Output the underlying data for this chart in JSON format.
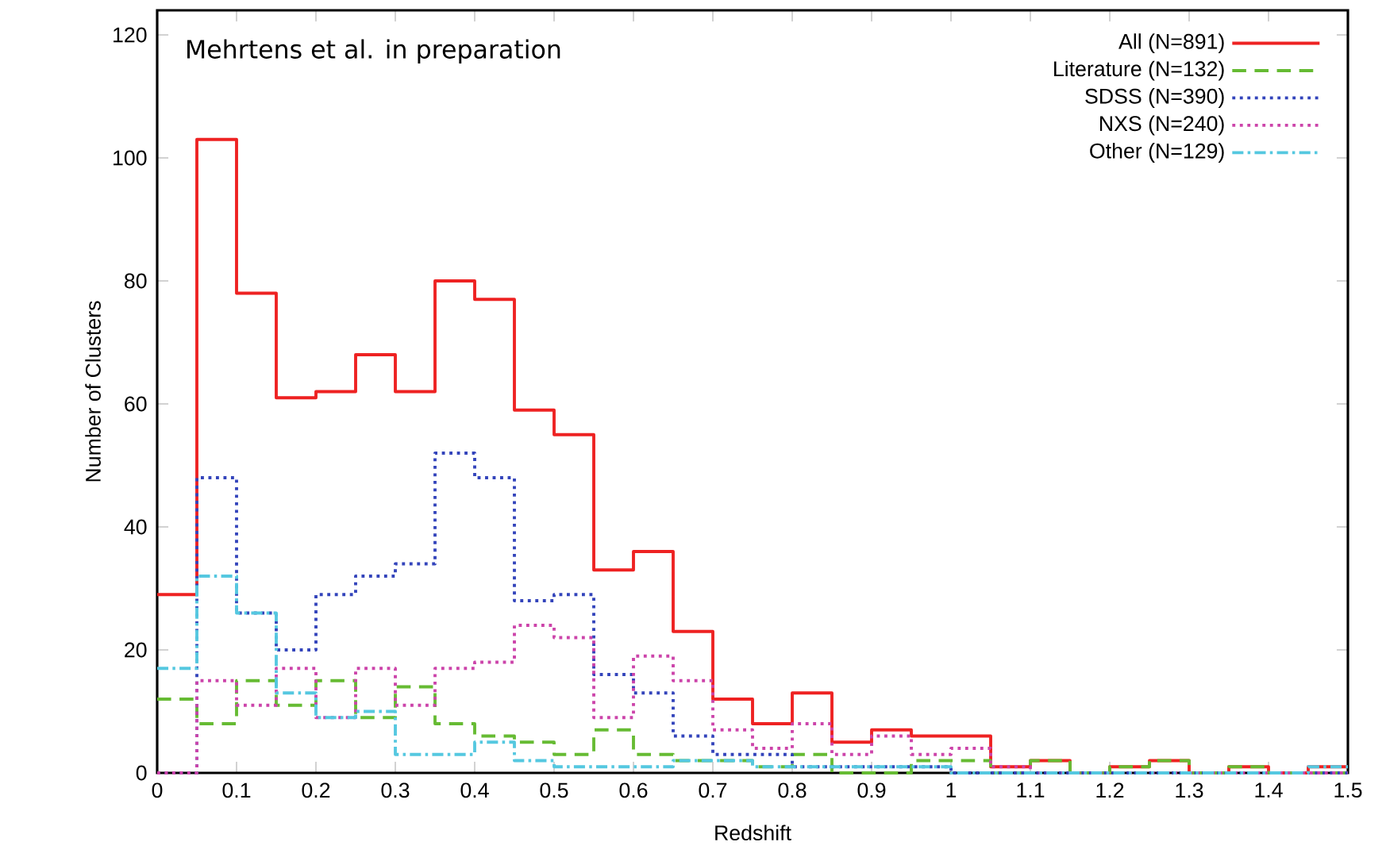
{
  "chart_data": {
    "type": "histogram",
    "xlabel": "Redshift",
    "ylabel": "Number of Clusters",
    "annotations": [
      "Mehrtens et al. in preparation"
    ],
    "bins": [
      0,
      0.05,
      0.1,
      0.15,
      0.2,
      0.25,
      0.3,
      0.35,
      0.4,
      0.45,
      0.5,
      0.55,
      0.6,
      0.65,
      0.7,
      0.75,
      0.8,
      0.85,
      0.9,
      0.95,
      1.0,
      1.05,
      1.1,
      1.15,
      1.2,
      1.25,
      1.3,
      1.35,
      1.4,
      1.45,
      1.5
    ],
    "series": [
      {
        "name": "All (N=891)",
        "color": "#ee2222",
        "line_style": "solid",
        "values": [
          29,
          103,
          78,
          61,
          62,
          68,
          62,
          80,
          77,
          59,
          55,
          33,
          36,
          23,
          12,
          8,
          13,
          5,
          7,
          6,
          6,
          1,
          2,
          0,
          1,
          2,
          0,
          1,
          0,
          1
        ]
      },
      {
        "name": "Literature (N=132)",
        "color": "#66bb33",
        "line_style": "dashed",
        "values": [
          12,
          8,
          15,
          11,
          15,
          9,
          14,
          8,
          6,
          5,
          3,
          7,
          3,
          2,
          2,
          1,
          3,
          0,
          0,
          2,
          2,
          0,
          2,
          0,
          1,
          2,
          0,
          1,
          0,
          0
        ]
      },
      {
        "name": "SDSS (N=390)",
        "color": "#3344bb",
        "line_style": "dotted",
        "values": [
          0,
          48,
          26,
          20,
          29,
          32,
          34,
          52,
          48,
          28,
          29,
          16,
          13,
          6,
          3,
          3,
          1,
          1,
          1,
          1,
          0,
          0,
          0,
          0,
          0,
          0,
          0,
          0,
          0,
          0
        ]
      },
      {
        "name": "NXS (N=240)",
        "color": "#cc44aa",
        "line_style": "dotted",
        "values": [
          0,
          15,
          11,
          17,
          9,
          17,
          11,
          17,
          18,
          24,
          22,
          9,
          19,
          15,
          7,
          4,
          8,
          3,
          6,
          3,
          4,
          1,
          0,
          0,
          0,
          0,
          0,
          0,
          0,
          0
        ]
      },
      {
        "name": "Other (N=129)",
        "color": "#55c8e0",
        "line_style": "dashdot",
        "values": [
          17,
          32,
          26,
          13,
          9,
          10,
          3,
          3,
          5,
          2,
          1,
          1,
          1,
          2,
          2,
          1,
          1,
          1,
          1,
          1,
          0,
          0,
          0,
          0,
          0,
          0,
          0,
          0,
          0,
          1
        ]
      }
    ],
    "xlim": [
      0,
      1.5
    ],
    "ylim": [
      0,
      124
    ],
    "xticks": [
      0,
      0.1,
      0.2,
      0.3,
      0.4,
      0.5,
      0.6,
      0.7,
      0.8,
      0.9,
      1,
      1.1,
      1.2,
      1.3,
      1.4,
      1.5
    ],
    "yticks": [
      0,
      20,
      40,
      60,
      80,
      100,
      120
    ],
    "legend": "top right"
  }
}
